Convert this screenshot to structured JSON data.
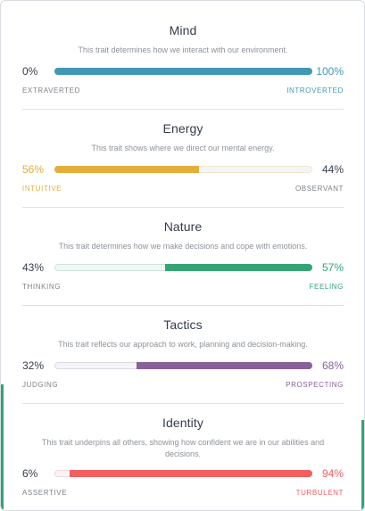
{
  "colors": {
    "mind": "#4298b4",
    "energy": "#e4ae3a",
    "nature": "#33a474",
    "tactics": "#88619a",
    "identity": "#f25e62"
  },
  "traits": [
    {
      "key": "mind",
      "title": "Mind",
      "description": "This trait determines how we interact with our environment.",
      "left_pct": "0%",
      "right_pct": "100%",
      "left_label": "EXTRAVERTED",
      "right_label": "INTROVERTED",
      "dominant": "right",
      "dominant_value": 100
    },
    {
      "key": "energy",
      "title": "Energy",
      "description": "This trait shows where we direct our mental energy.",
      "left_pct": "56%",
      "right_pct": "44%",
      "left_label": "INTUITIVE",
      "right_label": "OBSERVANT",
      "dominant": "left",
      "dominant_value": 56
    },
    {
      "key": "nature",
      "title": "Nature",
      "description": "This trait determines how we make decisions and cope with emotions.",
      "left_pct": "43%",
      "right_pct": "57%",
      "left_label": "THINKING",
      "right_label": "FEELING",
      "dominant": "right",
      "dominant_value": 57
    },
    {
      "key": "tactics",
      "title": "Tactics",
      "description": "This trait reflects our approach to work, planning and decision-making.",
      "left_pct": "32%",
      "right_pct": "68%",
      "left_label": "JUDGING",
      "right_label": "PROSPECTING",
      "dominant": "right",
      "dominant_value": 68
    },
    {
      "key": "identity",
      "title": "Identity",
      "description": "This trait underpins all others, showing how confident we are in our abilities and decisions.",
      "left_pct": "6%",
      "right_pct": "94%",
      "left_label": "ASSERTIVE",
      "right_label": "TURBULENT",
      "dominant": "right",
      "dominant_value": 94
    }
  ]
}
